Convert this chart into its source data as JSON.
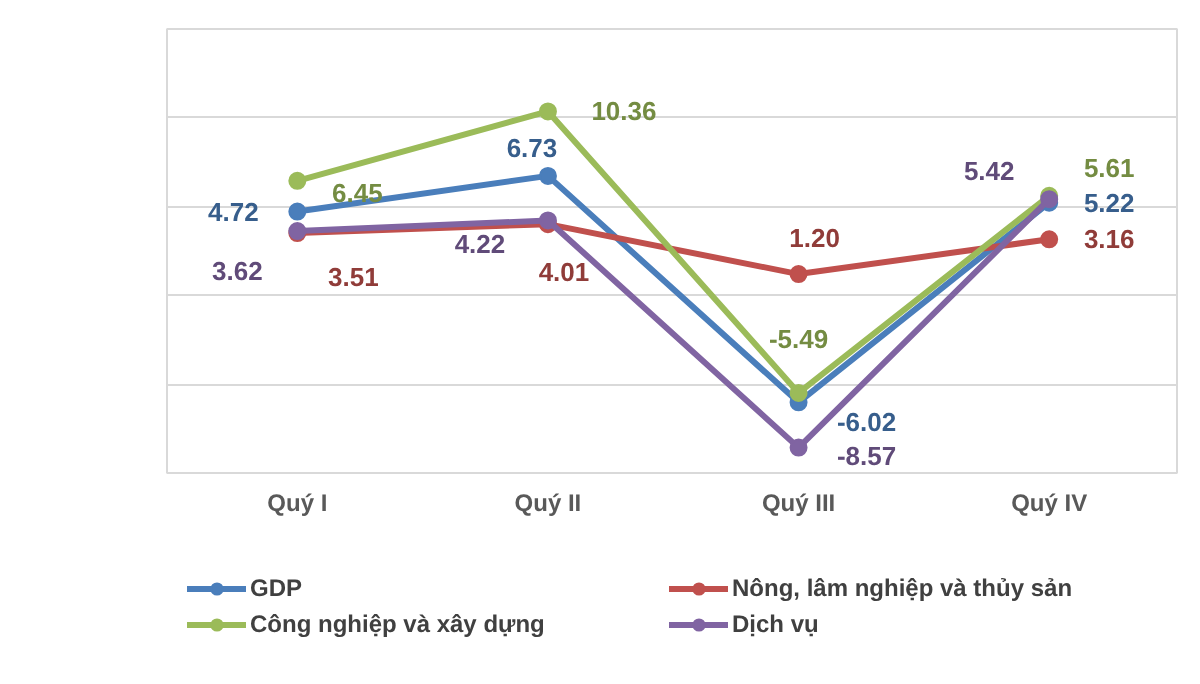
{
  "chart_data": {
    "type": "line",
    "categories": [
      "Quý I",
      "Quý II",
      "Quý III",
      "Quý IV"
    ],
    "series": [
      {
        "name": "GDP",
        "color": "#4a7ebb",
        "values": [
          4.72,
          6.73,
          -6.02,
          5.22
        ],
        "value_labels": [
          "4.72",
          "6.73",
          "-6.02",
          "5.22"
        ]
      },
      {
        "name": "Nông, lâm nghiệp và thủy sản",
        "color": "#c0504d",
        "values": [
          3.51,
          4.01,
          1.2,
          3.16
        ],
        "value_labels": [
          "3.51",
          "4.01",
          "1.20",
          "3.16"
        ]
      },
      {
        "name": "Công nghiệp và xây dựng",
        "color": "#9bbb59",
        "values": [
          6.45,
          10.36,
          -5.49,
          5.61
        ],
        "value_labels": [
          "6.45",
          "10.36",
          "-5.49",
          "5.61"
        ]
      },
      {
        "name": "Dịch vụ",
        "color": "#8064a2",
        "values": [
          3.62,
          4.22,
          -8.57,
          5.42
        ],
        "value_labels": [
          "3.62",
          "4.22",
          "-8.57",
          "5.42"
        ]
      }
    ],
    "ylim": [
      -10,
      15
    ],
    "yticks": [
      {
        "value": -10,
        "label": null
      },
      {
        "value": -5,
        "label": null
      },
      {
        "value": 0,
        "label": null
      },
      {
        "value": 5,
        "label": null
      },
      {
        "value": 10,
        "label": null
      },
      {
        "value": 15,
        "label": null
      }
    ],
    "tick_labels": "x",
    "grid": "y",
    "legend": "bottom",
    "marker": "circle",
    "line_style": "solid"
  }
}
